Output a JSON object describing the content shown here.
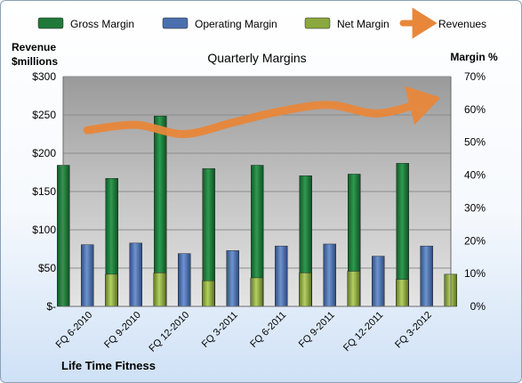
{
  "chart_data": {
    "type": "bar",
    "title": "Quarterly Margins",
    "caption": "Life Time Fitness",
    "categories": [
      "FQ 6-2010",
      "FQ 9-2010",
      "FQ 12-2010",
      "FQ 3-2011",
      "FQ 6-2011",
      "FQ 9-2011",
      "FQ 12-2011",
      "FQ 3-2012"
    ],
    "series": [
      {
        "name": "Gross Margin",
        "axis": "right",
        "type": "bar",
        "color": "#1f7a3a",
        "values": [
          43,
          39,
          58,
          42,
          43,
          39.8,
          40.3,
          43.6
        ]
      },
      {
        "name": "Operating Margin",
        "axis": "right",
        "type": "bar",
        "color": "#4a6fae",
        "values": [
          18.8,
          19.3,
          16.1,
          17,
          18.4,
          19,
          15.3,
          18.4
        ]
      },
      {
        "name": "Net Margin",
        "axis": "right",
        "type": "bar",
        "color": "#8aa83e",
        "values": [
          9.8,
          10.2,
          7.8,
          8.7,
          10.2,
          10.7,
          8.2,
          9.8
        ]
      },
      {
        "name": "Revenues",
        "axis": "left",
        "type": "line",
        "color": "#e8873a",
        "values": [
          230,
          237,
          225,
          240,
          255,
          263,
          252,
          268
        ]
      }
    ],
    "y_left": {
      "label_line1": "Revenue",
      "label_line2": "$millions",
      "min": 0,
      "max": 300,
      "step": 50,
      "tick_labels": [
        "$-",
        "$50",
        "$100",
        "$150",
        "$200",
        "$250",
        "$300"
      ]
    },
    "y_right": {
      "label": "Margin %",
      "min": 0,
      "max": 70,
      "step": 10,
      "tick_labels": [
        "0%",
        "10%",
        "20%",
        "30%",
        "40%",
        "50%",
        "60%",
        "70%"
      ]
    },
    "legend": {
      "position": "top"
    },
    "grid": true
  }
}
